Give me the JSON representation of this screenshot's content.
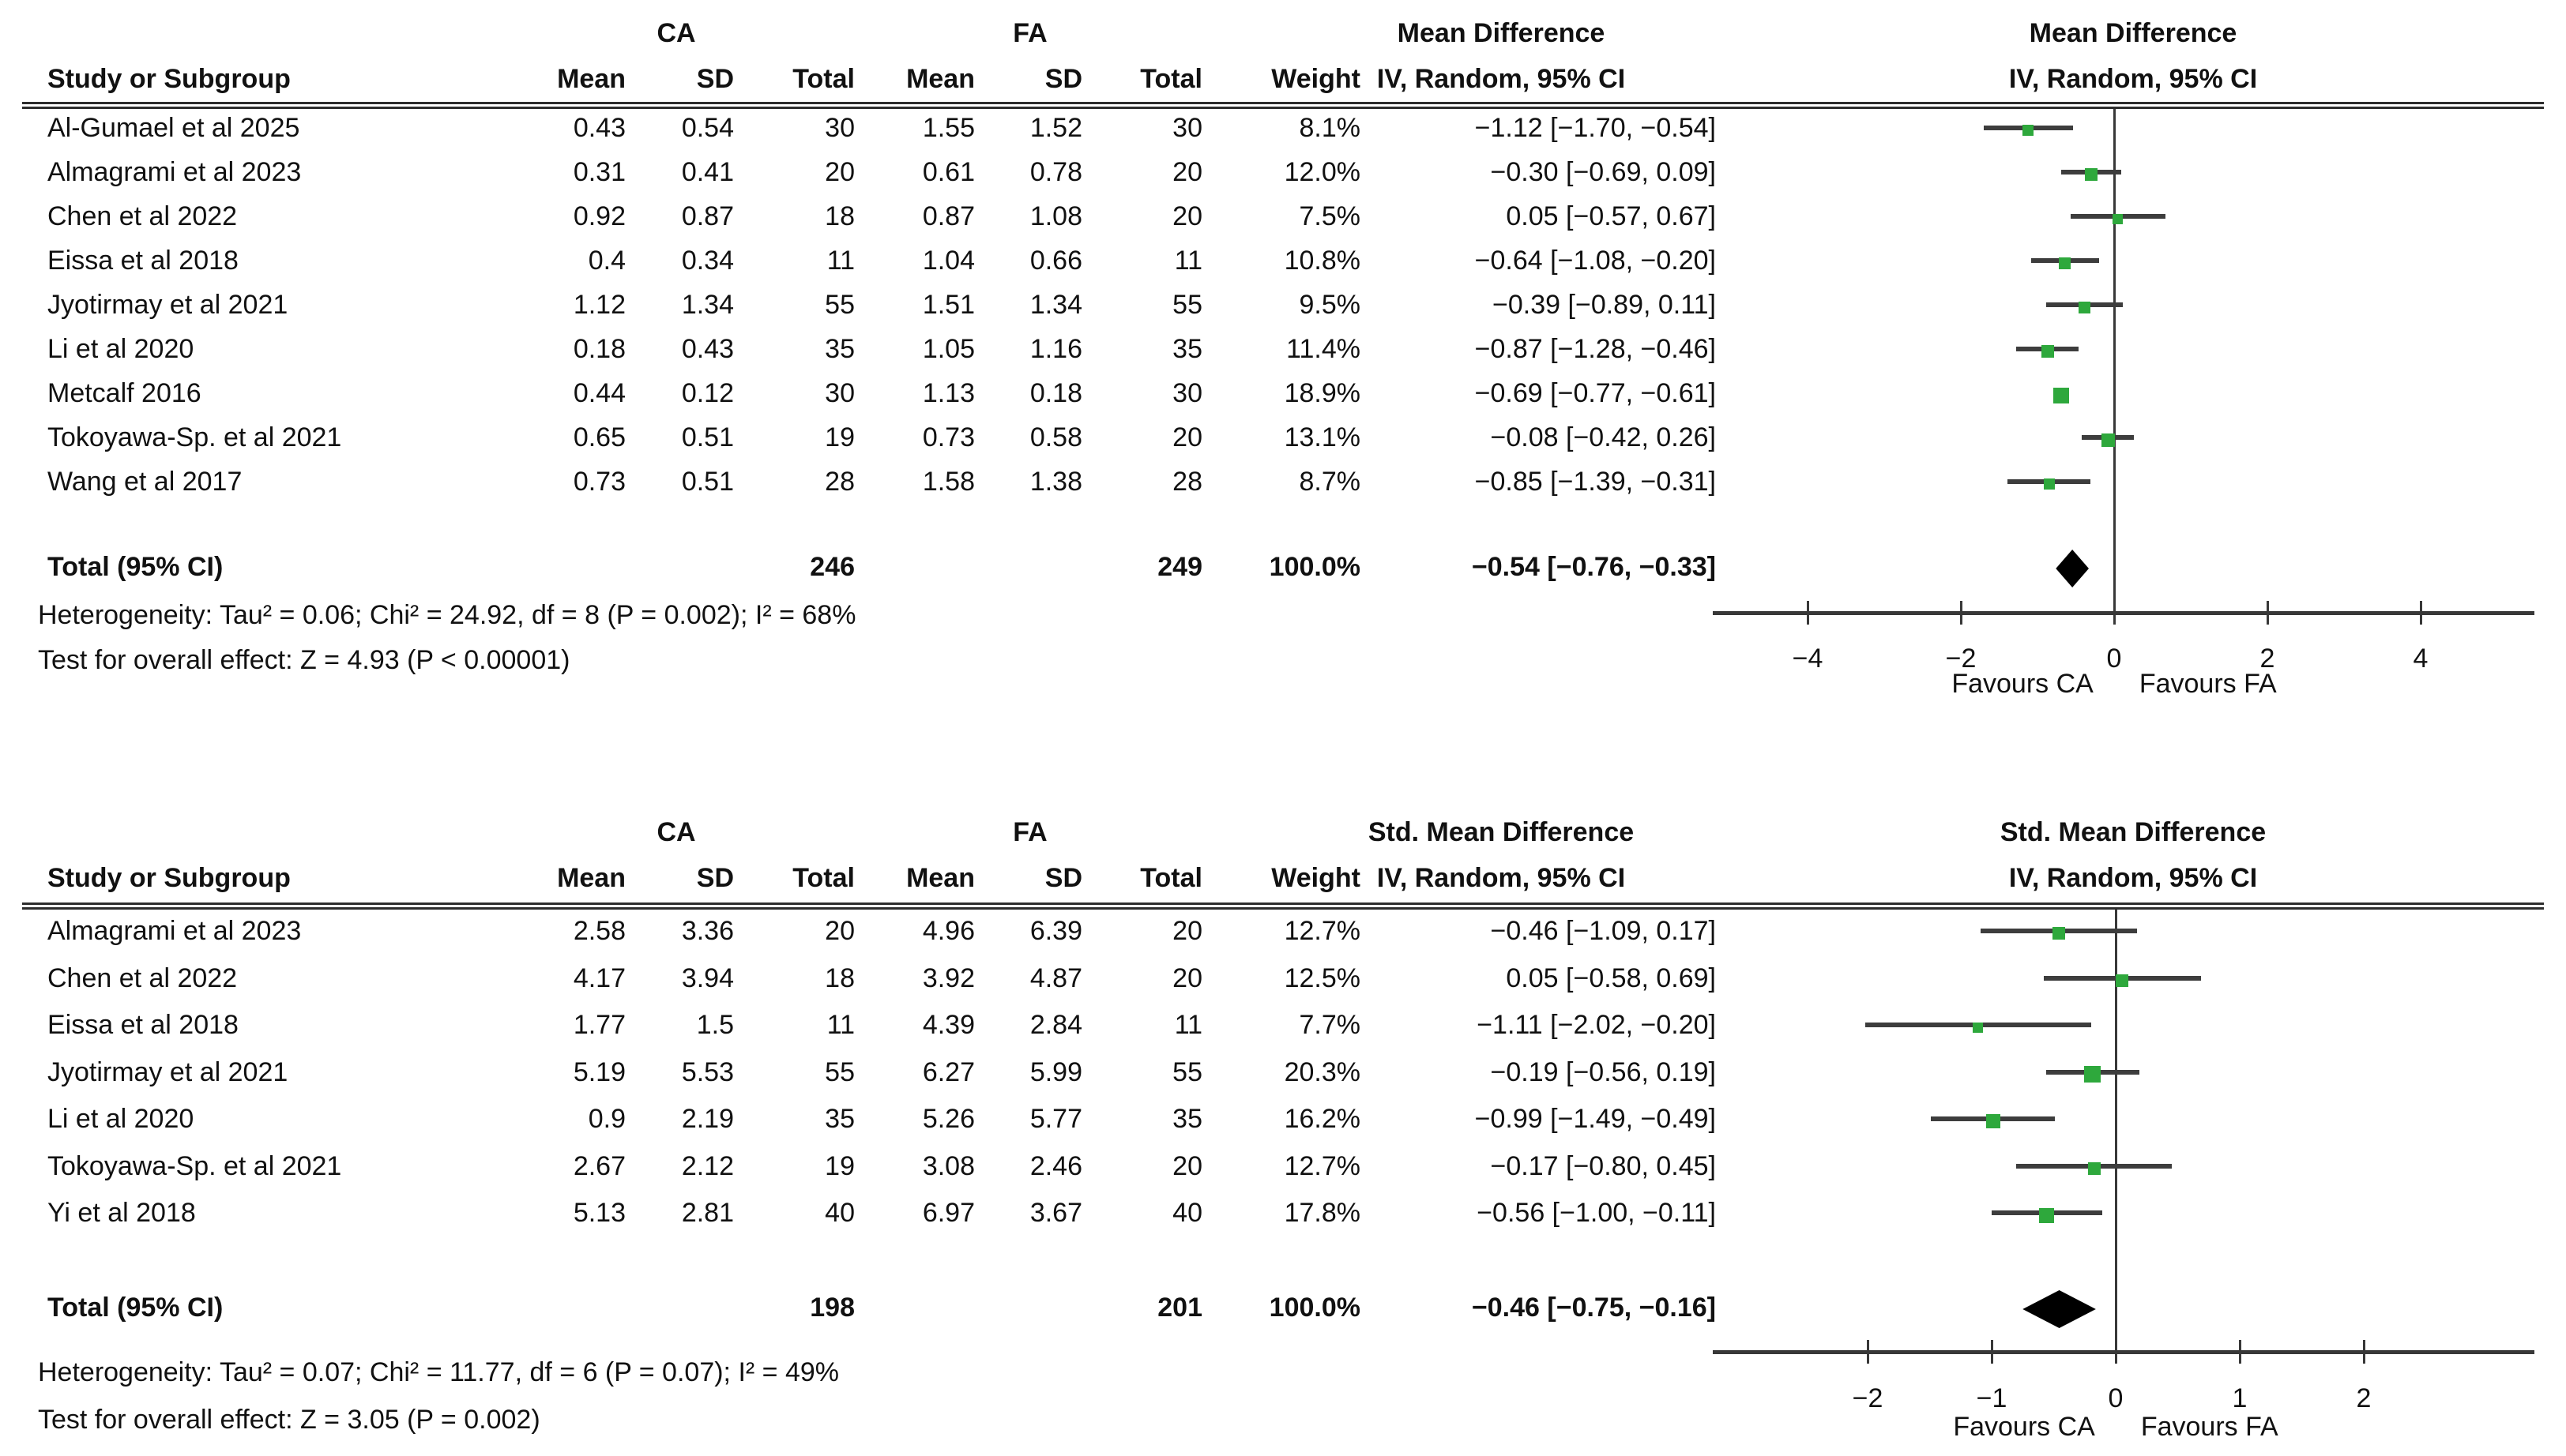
{
  "chart_data": [
    {
      "type": "forest",
      "group1": "CA",
      "group2": "FA",
      "effect_title": "Mean Difference",
      "effect_subtitle": "IV, Random, 95% CI",
      "columns": {
        "study": "Study or Subgroup",
        "mean": "Mean",
        "sd": "SD",
        "total": "Total",
        "weight": "Weight"
      },
      "marker_color": "#2ea83c",
      "studies": [
        {
          "name": "Al-Gumael et al 2025",
          "mean1": "0.43",
          "sd1": "0.54",
          "n1": "30",
          "mean2": "1.55",
          "sd2": "1.52",
          "n2": "30",
          "weight": "8.1%",
          "ci_text": "−1.12 [−1.70, −0.54]",
          "est": -1.12,
          "lo": -1.7,
          "hi": -0.54,
          "w": 8.1
        },
        {
          "name": "Almagrami et al 2023",
          "mean1": "0.31",
          "sd1": "0.41",
          "n1": "20",
          "mean2": "0.61",
          "sd2": "0.78",
          "n2": "20",
          "weight": "12.0%",
          "ci_text": "−0.30 [−0.69, 0.09]",
          "est": -0.3,
          "lo": -0.69,
          "hi": 0.09,
          "w": 12.0
        },
        {
          "name": "Chen et al 2022",
          "mean1": "0.92",
          "sd1": "0.87",
          "n1": "18",
          "mean2": "0.87",
          "sd2": "1.08",
          "n2": "20",
          "weight": "7.5%",
          "ci_text": "0.05 [−0.57, 0.67]",
          "est": 0.05,
          "lo": -0.57,
          "hi": 0.67,
          "w": 7.5
        },
        {
          "name": "Eissa et al 2018",
          "mean1": "0.4",
          "sd1": "0.34",
          "n1": "11",
          "mean2": "1.04",
          "sd2": "0.66",
          "n2": "11",
          "weight": "10.8%",
          "ci_text": "−0.64 [−1.08, −0.20]",
          "est": -0.64,
          "lo": -1.08,
          "hi": -0.2,
          "w": 10.8
        },
        {
          "name": "Jyotirmay et al 2021",
          "mean1": "1.12",
          "sd1": "1.34",
          "n1": "55",
          "mean2": "1.51",
          "sd2": "1.34",
          "n2": "55",
          "weight": "9.5%",
          "ci_text": "−0.39 [−0.89, 0.11]",
          "est": -0.39,
          "lo": -0.89,
          "hi": 0.11,
          "w": 9.5
        },
        {
          "name": "Li et al 2020",
          "mean1": "0.18",
          "sd1": "0.43",
          "n1": "35",
          "mean2": "1.05",
          "sd2": "1.16",
          "n2": "35",
          "weight": "11.4%",
          "ci_text": "−0.87 [−1.28, −0.46]",
          "est": -0.87,
          "lo": -1.28,
          "hi": -0.46,
          "w": 11.4
        },
        {
          "name": "Metcalf 2016",
          "mean1": "0.44",
          "sd1": "0.12",
          "n1": "30",
          "mean2": "1.13",
          "sd2": "0.18",
          "n2": "30",
          "weight": "18.9%",
          "ci_text": "−0.69 [−0.77, −0.61]",
          "est": -0.69,
          "lo": -0.77,
          "hi": -0.61,
          "w": 18.9
        },
        {
          "name": "Tokoyawa-Sp. et al 2021",
          "mean1": "0.65",
          "sd1": "0.51",
          "n1": "19",
          "mean2": "0.73",
          "sd2": "0.58",
          "n2": "20",
          "weight": "13.1%",
          "ci_text": "−0.08 [−0.42, 0.26]",
          "est": -0.08,
          "lo": -0.42,
          "hi": 0.26,
          "w": 13.1
        },
        {
          "name": "Wang et al 2017",
          "mean1": "0.73",
          "sd1": "0.51",
          "n1": "28",
          "mean2": "1.58",
          "sd2": "1.38",
          "n2": "28",
          "weight": "8.7%",
          "ci_text": "−0.85 [−1.39, −0.31]",
          "est": -0.85,
          "lo": -1.39,
          "hi": -0.31,
          "w": 8.7
        }
      ],
      "total": {
        "label": "Total (95% CI)",
        "n1": "246",
        "n2": "249",
        "weight": "100.0%",
        "ci_text": "−0.54 [−0.76, −0.33]",
        "est": -0.54,
        "lo": -0.76,
        "hi": -0.33
      },
      "heterogeneity": "Heterogeneity: Tau² = 0.06; Chi² = 24.92, df = 8 (P = 0.002); I² = 68%",
      "overall_effect": "Test for overall effect: Z = 4.93 (P < 0.00001)",
      "axis": {
        "ticks": [
          -4,
          -2,
          0,
          2,
          4
        ],
        "min": -5.3,
        "max": 5.5,
        "favours_left": "Favours CA",
        "favours_right": "Favours FA"
      }
    },
    {
      "type": "forest",
      "group1": "CA",
      "group2": "FA",
      "effect_title": "Std. Mean Difference",
      "effect_subtitle": "IV, Random, 95% CI",
      "columns": {
        "study": "Study or Subgroup",
        "mean": "Mean",
        "sd": "SD",
        "total": "Total",
        "weight": "Weight"
      },
      "marker_color": "#2ea83c",
      "studies": [
        {
          "name": "Almagrami et al 2023",
          "mean1": "2.58",
          "sd1": "3.36",
          "n1": "20",
          "mean2": "4.96",
          "sd2": "6.39",
          "n2": "20",
          "weight": "12.7%",
          "ci_text": "−0.46 [−1.09, 0.17]",
          "est": -0.46,
          "lo": -1.09,
          "hi": 0.17,
          "w": 12.7
        },
        {
          "name": "Chen et al 2022",
          "mean1": "4.17",
          "sd1": "3.94",
          "n1": "18",
          "mean2": "3.92",
          "sd2": "4.87",
          "n2": "20",
          "weight": "12.5%",
          "ci_text": "0.05 [−0.58, 0.69]",
          "est": 0.05,
          "lo": -0.58,
          "hi": 0.69,
          "w": 12.5
        },
        {
          "name": "Eissa et al 2018",
          "mean1": "1.77",
          "sd1": "1.5",
          "n1": "11",
          "mean2": "4.39",
          "sd2": "2.84",
          "n2": "11",
          "weight": "7.7%",
          "ci_text": "−1.11 [−2.02, −0.20]",
          "est": -1.11,
          "lo": -2.02,
          "hi": -0.2,
          "w": 7.7
        },
        {
          "name": "Jyotirmay et al 2021",
          "mean1": "5.19",
          "sd1": "5.53",
          "n1": "55",
          "mean2": "6.27",
          "sd2": "5.99",
          "n2": "55",
          "weight": "20.3%",
          "ci_text": "−0.19 [−0.56, 0.19]",
          "est": -0.19,
          "lo": -0.56,
          "hi": 0.19,
          "w": 20.3
        },
        {
          "name": "Li et al 2020",
          "mean1": "0.9",
          "sd1": "2.19",
          "n1": "35",
          "mean2": "5.26",
          "sd2": "5.77",
          "n2": "35",
          "weight": "16.2%",
          "ci_text": "−0.99 [−1.49, −0.49]",
          "est": -0.99,
          "lo": -1.49,
          "hi": -0.49,
          "w": 16.2
        },
        {
          "name": "Tokoyawa-Sp. et al 2021",
          "mean1": "2.67",
          "sd1": "2.12",
          "n1": "19",
          "mean2": "3.08",
          "sd2": "2.46",
          "n2": "20",
          "weight": "12.7%",
          "ci_text": "−0.17 [−0.80, 0.45]",
          "est": -0.17,
          "lo": -0.8,
          "hi": 0.45,
          "w": 12.7
        },
        {
          "name": "Yi et al 2018",
          "mean1": "5.13",
          "sd1": "2.81",
          "n1": "40",
          "mean2": "6.97",
          "sd2": "3.67",
          "n2": "40",
          "weight": "17.8%",
          "ci_text": "−0.56 [−1.00, −0.11]",
          "est": -0.56,
          "lo": -1.0,
          "hi": -0.11,
          "w": 17.8
        }
      ],
      "total": {
        "label": "Total (95% CI)",
        "n1": "198",
        "n2": "201",
        "weight": "100.0%",
        "ci_text": "−0.46 [−0.75, −0.16]",
        "est": -0.46,
        "lo": -0.75,
        "hi": -0.16
      },
      "heterogeneity": "Heterogeneity: Tau² = 0.07; Chi² = 11.77, df = 6 (P = 0.07); I² = 49%",
      "overall_effect": "Test for overall effect: Z = 3.05 (P = 0.002)",
      "axis": {
        "ticks": [
          -2,
          -1,
          0,
          1,
          2
        ],
        "min": -3.3,
        "max": 3.4,
        "favours_left": "Favours CA",
        "favours_right": "Favours FA"
      }
    }
  ]
}
